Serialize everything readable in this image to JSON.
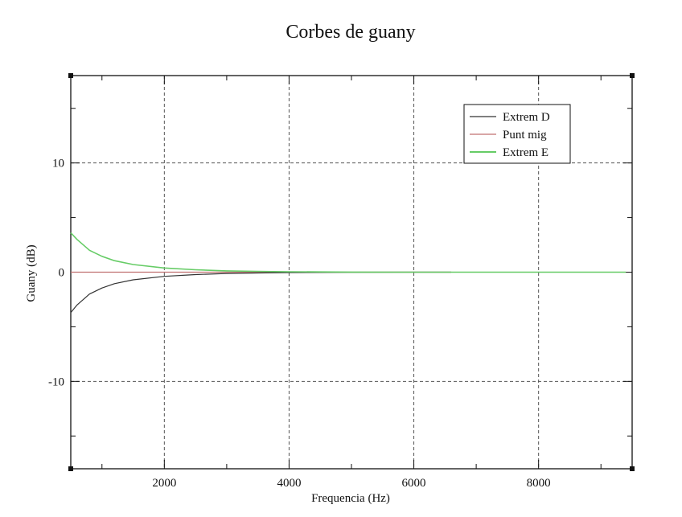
{
  "chart_data": {
    "type": "line",
    "title": "Corbes de guany",
    "xlabel": "Frequencia (Hz)",
    "ylabel": "Guany (dB)",
    "xlim": [
      500,
      9500
    ],
    "ylim": [
      -18,
      18
    ],
    "xticks": [
      2000,
      4000,
      6000,
      8000
    ],
    "xtick_labels": [
      "2000",
      "4000",
      "6000",
      "8000"
    ],
    "yticks": [
      -10,
      0,
      10
    ],
    "ytick_labels": [
      "-10",
      "0",
      "10"
    ],
    "grid": true,
    "legend_position": "top-right",
    "series": [
      {
        "name": "Extrem D",
        "color": "#333333",
        "x": [
          500,
          600,
          800,
          1000,
          1200,
          1500,
          2000,
          2500,
          3000,
          3500,
          4000,
          5000,
          6000,
          6600
        ],
        "y": [
          -3.7,
          -3.0,
          -2.0,
          -1.45,
          -1.05,
          -0.7,
          -0.38,
          -0.22,
          -0.12,
          -0.07,
          -0.04,
          -0.01,
          0.0,
          0.0
        ]
      },
      {
        "name": "Punt mig",
        "color": "#c07070",
        "x": [
          500,
          2000,
          4000,
          6000,
          6600
        ],
        "y": [
          0,
          0,
          0,
          0,
          0
        ]
      },
      {
        "name": "Extrem E",
        "color": "#66cc66",
        "x": [
          500,
          600,
          800,
          1000,
          1200,
          1500,
          2000,
          2500,
          3000,
          3500,
          4000,
          5000,
          6000,
          7000,
          8000,
          9400
        ],
        "y": [
          3.6,
          3.0,
          2.0,
          1.45,
          1.05,
          0.7,
          0.38,
          0.22,
          0.12,
          0.07,
          0.04,
          0.01,
          0.0,
          0.0,
          0.0,
          0.0
        ]
      }
    ]
  }
}
